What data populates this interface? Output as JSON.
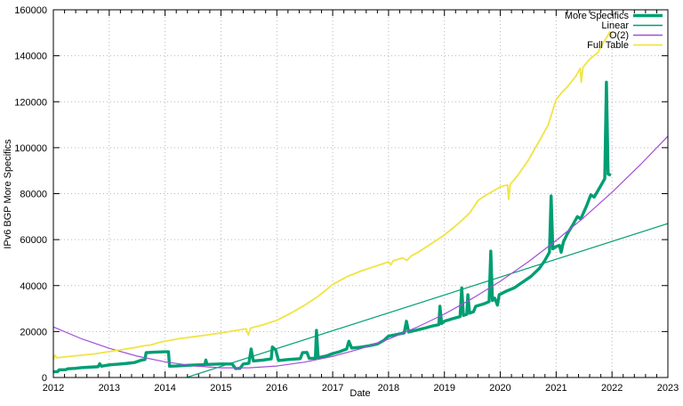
{
  "chart_data": {
    "type": "line",
    "title": "",
    "xlabel": "Date",
    "ylabel": "IPv6 BGP More Specifics",
    "xlim": [
      2012,
      2023
    ],
    "ylim": [
      0,
      160000
    ],
    "x_ticks": [
      2012,
      2013,
      2014,
      2015,
      2016,
      2017,
      2018,
      2019,
      2020,
      2021,
      2022,
      2023
    ],
    "y_ticks": [
      0,
      20000,
      40000,
      60000,
      80000,
      100000,
      120000,
      140000,
      160000
    ],
    "x_minor_step": 0.2,
    "grid": true,
    "grid_color": "#b8b8b8",
    "border_color": "#000000",
    "background": "#ffffff",
    "legend_position": "top-right-inside",
    "series": [
      {
        "name": "More Specifics",
        "color": "#009e73",
        "width": 3.4,
        "points": [
          [
            2012.0,
            2500
          ],
          [
            2012.08,
            2600
          ],
          [
            2012.1,
            3300
          ],
          [
            2012.22,
            3400
          ],
          [
            2012.26,
            3800
          ],
          [
            2012.4,
            4000
          ],
          [
            2012.5,
            4300
          ],
          [
            2012.65,
            4500
          ],
          [
            2012.8,
            4700
          ],
          [
            2012.83,
            6000
          ],
          [
            2012.86,
            4900
          ],
          [
            2013.0,
            5500
          ],
          [
            2013.15,
            5800
          ],
          [
            2013.3,
            6100
          ],
          [
            2013.45,
            6500
          ],
          [
            2013.58,
            7600
          ],
          [
            2013.64,
            7800
          ],
          [
            2013.66,
            10800
          ],
          [
            2013.8,
            11000
          ],
          [
            2014.0,
            11200
          ],
          [
            2014.06,
            11200
          ],
          [
            2014.08,
            4900
          ],
          [
            2014.2,
            5000
          ],
          [
            2014.4,
            5300
          ],
          [
            2014.6,
            5500
          ],
          [
            2014.71,
            5600
          ],
          [
            2014.73,
            7600
          ],
          [
            2014.75,
            5700
          ],
          [
            2015.0,
            5900
          ],
          [
            2015.2,
            5900
          ],
          [
            2015.26,
            3900
          ],
          [
            2015.34,
            4000
          ],
          [
            2015.4,
            5900
          ],
          [
            2015.5,
            6200
          ],
          [
            2015.54,
            12400
          ],
          [
            2015.58,
            7200
          ],
          [
            2015.75,
            7600
          ],
          [
            2015.9,
            8100
          ],
          [
            2015.92,
            13300
          ],
          [
            2015.98,
            12000
          ],
          [
            2016.03,
            7400
          ],
          [
            2016.2,
            7800
          ],
          [
            2016.42,
            8200
          ],
          [
            2016.46,
            10800
          ],
          [
            2016.54,
            10900
          ],
          [
            2016.58,
            8300
          ],
          [
            2016.69,
            8400
          ],
          [
            2016.71,
            20500
          ],
          [
            2016.74,
            8600
          ],
          [
            2016.9,
            9500
          ],
          [
            2017.0,
            10400
          ],
          [
            2017.12,
            11200
          ],
          [
            2017.25,
            12400
          ],
          [
            2017.29,
            15800
          ],
          [
            2017.34,
            12800
          ],
          [
            2017.5,
            13200
          ],
          [
            2017.65,
            13800
          ],
          [
            2017.8,
            14600
          ],
          [
            2017.92,
            16200
          ],
          [
            2018.0,
            18000
          ],
          [
            2018.12,
            18600
          ],
          [
            2018.28,
            19400
          ],
          [
            2018.32,
            24500
          ],
          [
            2018.36,
            19800
          ],
          [
            2018.5,
            20600
          ],
          [
            2018.65,
            21500
          ],
          [
            2018.8,
            22500
          ],
          [
            2018.9,
            23000
          ],
          [
            2018.92,
            31000
          ],
          [
            2018.95,
            23500
          ],
          [
            2019.0,
            24500
          ],
          [
            2019.15,
            25600
          ],
          [
            2019.28,
            26500
          ],
          [
            2019.31,
            39000
          ],
          [
            2019.34,
            27000
          ],
          [
            2019.4,
            27500
          ],
          [
            2019.42,
            36000
          ],
          [
            2019.45,
            28000
          ],
          [
            2019.52,
            28600
          ],
          [
            2019.56,
            31000
          ],
          [
            2019.7,
            32000
          ],
          [
            2019.8,
            33000
          ],
          [
            2019.83,
            55000
          ],
          [
            2019.86,
            33500
          ],
          [
            2019.9,
            34500
          ],
          [
            2019.95,
            31500
          ],
          [
            2019.98,
            36000
          ],
          [
            2020.1,
            37500
          ],
          [
            2020.25,
            39000
          ],
          [
            2020.4,
            41500
          ],
          [
            2020.55,
            44000
          ],
          [
            2020.7,
            47500
          ],
          [
            2020.8,
            51000
          ],
          [
            2020.88,
            54500
          ],
          [
            2020.91,
            79000
          ],
          [
            2020.94,
            56000
          ],
          [
            2021.0,
            57000
          ],
          [
            2021.06,
            57500
          ],
          [
            2021.09,
            54500
          ],
          [
            2021.13,
            59000
          ],
          [
            2021.2,
            62500
          ],
          [
            2021.3,
            66500
          ],
          [
            2021.38,
            70000
          ],
          [
            2021.44,
            69000
          ],
          [
            2021.55,
            75000
          ],
          [
            2021.62,
            79500
          ],
          [
            2021.68,
            78500
          ],
          [
            2021.8,
            83500
          ],
          [
            2021.87,
            86500
          ],
          [
            2021.9,
            128500
          ],
          [
            2021.93,
            88500
          ],
          [
            2021.98,
            88000
          ]
        ]
      },
      {
        "name": "Linear",
        "color": "#009e73",
        "width": 1.2,
        "points": [
          [
            2012.0,
            -18500
          ],
          [
            2023.0,
            67000
          ]
        ]
      },
      {
        "name": "O(2)",
        "color": "#a24fd8",
        "width": 1.2,
        "points": [
          [
            2012.0,
            22000
          ],
          [
            2012.5,
            16900
          ],
          [
            2013.0,
            12700
          ],
          [
            2013.5,
            9300
          ],
          [
            2014.0,
            6800
          ],
          [
            2014.5,
            5100
          ],
          [
            2015.0,
            4200
          ],
          [
            2015.5,
            4200
          ],
          [
            2016.0,
            5000
          ],
          [
            2016.5,
            6700
          ],
          [
            2017.0,
            9200
          ],
          [
            2017.5,
            12500
          ],
          [
            2018.0,
            16700
          ],
          [
            2018.5,
            21800
          ],
          [
            2019.0,
            27600
          ],
          [
            2019.5,
            34400
          ],
          [
            2020.0,
            41900
          ],
          [
            2020.5,
            50300
          ],
          [
            2021.0,
            59600
          ],
          [
            2021.5,
            69700
          ],
          [
            2022.0,
            80600
          ],
          [
            2022.5,
            92400
          ],
          [
            2023.0,
            105000
          ]
        ]
      },
      {
        "name": "Full Table",
        "color": "#f0e442",
        "width": 1.8,
        "points": [
          [
            2012.0,
            7800
          ],
          [
            2012.03,
            9700
          ],
          [
            2012.06,
            8600
          ],
          [
            2012.3,
            9200
          ],
          [
            2012.5,
            9700
          ],
          [
            2012.75,
            10300
          ],
          [
            2013.0,
            11300
          ],
          [
            2013.25,
            12200
          ],
          [
            2013.5,
            13200
          ],
          [
            2013.62,
            13800
          ],
          [
            2013.75,
            14200
          ],
          [
            2013.9,
            15300
          ],
          [
            2014.0,
            15800
          ],
          [
            2014.25,
            16900
          ],
          [
            2014.5,
            17700
          ],
          [
            2014.75,
            18500
          ],
          [
            2015.0,
            19400
          ],
          [
            2015.25,
            20400
          ],
          [
            2015.45,
            21200
          ],
          [
            2015.49,
            18500
          ],
          [
            2015.53,
            21500
          ],
          [
            2015.75,
            22900
          ],
          [
            2016.0,
            24900
          ],
          [
            2016.25,
            28000
          ],
          [
            2016.5,
            31500
          ],
          [
            2016.75,
            35500
          ],
          [
            2017.0,
            40500
          ],
          [
            2017.25,
            43800
          ],
          [
            2017.5,
            46300
          ],
          [
            2017.75,
            48300
          ],
          [
            2018.0,
            50300
          ],
          [
            2018.04,
            49000
          ],
          [
            2018.08,
            50800
          ],
          [
            2018.25,
            52000
          ],
          [
            2018.33,
            51000
          ],
          [
            2018.4,
            52800
          ],
          [
            2018.55,
            54800
          ],
          [
            2018.75,
            58000
          ],
          [
            2019.0,
            62000
          ],
          [
            2019.25,
            67000
          ],
          [
            2019.45,
            71500
          ],
          [
            2019.6,
            77000
          ],
          [
            2019.75,
            79500
          ],
          [
            2019.9,
            81500
          ],
          [
            2020.0,
            83000
          ],
          [
            2020.13,
            83800
          ],
          [
            2020.15,
            77500
          ],
          [
            2020.18,
            84200
          ],
          [
            2020.3,
            87500
          ],
          [
            2020.5,
            94500
          ],
          [
            2020.7,
            103000
          ],
          [
            2020.86,
            110000
          ],
          [
            2021.0,
            121000
          ],
          [
            2021.1,
            124000
          ],
          [
            2021.2,
            126500
          ],
          [
            2021.35,
            131000
          ],
          [
            2021.43,
            134500
          ],
          [
            2021.45,
            128500
          ],
          [
            2021.48,
            135000
          ],
          [
            2021.6,
            138500
          ],
          [
            2021.75,
            141500
          ],
          [
            2021.85,
            146000
          ],
          [
            2021.92,
            148500
          ],
          [
            2021.96,
            150500
          ],
          [
            2022.0,
            148500
          ]
        ]
      }
    ],
    "legend": [
      "More Specifics",
      "Linear",
      "O(2)",
      "Full Table"
    ]
  }
}
